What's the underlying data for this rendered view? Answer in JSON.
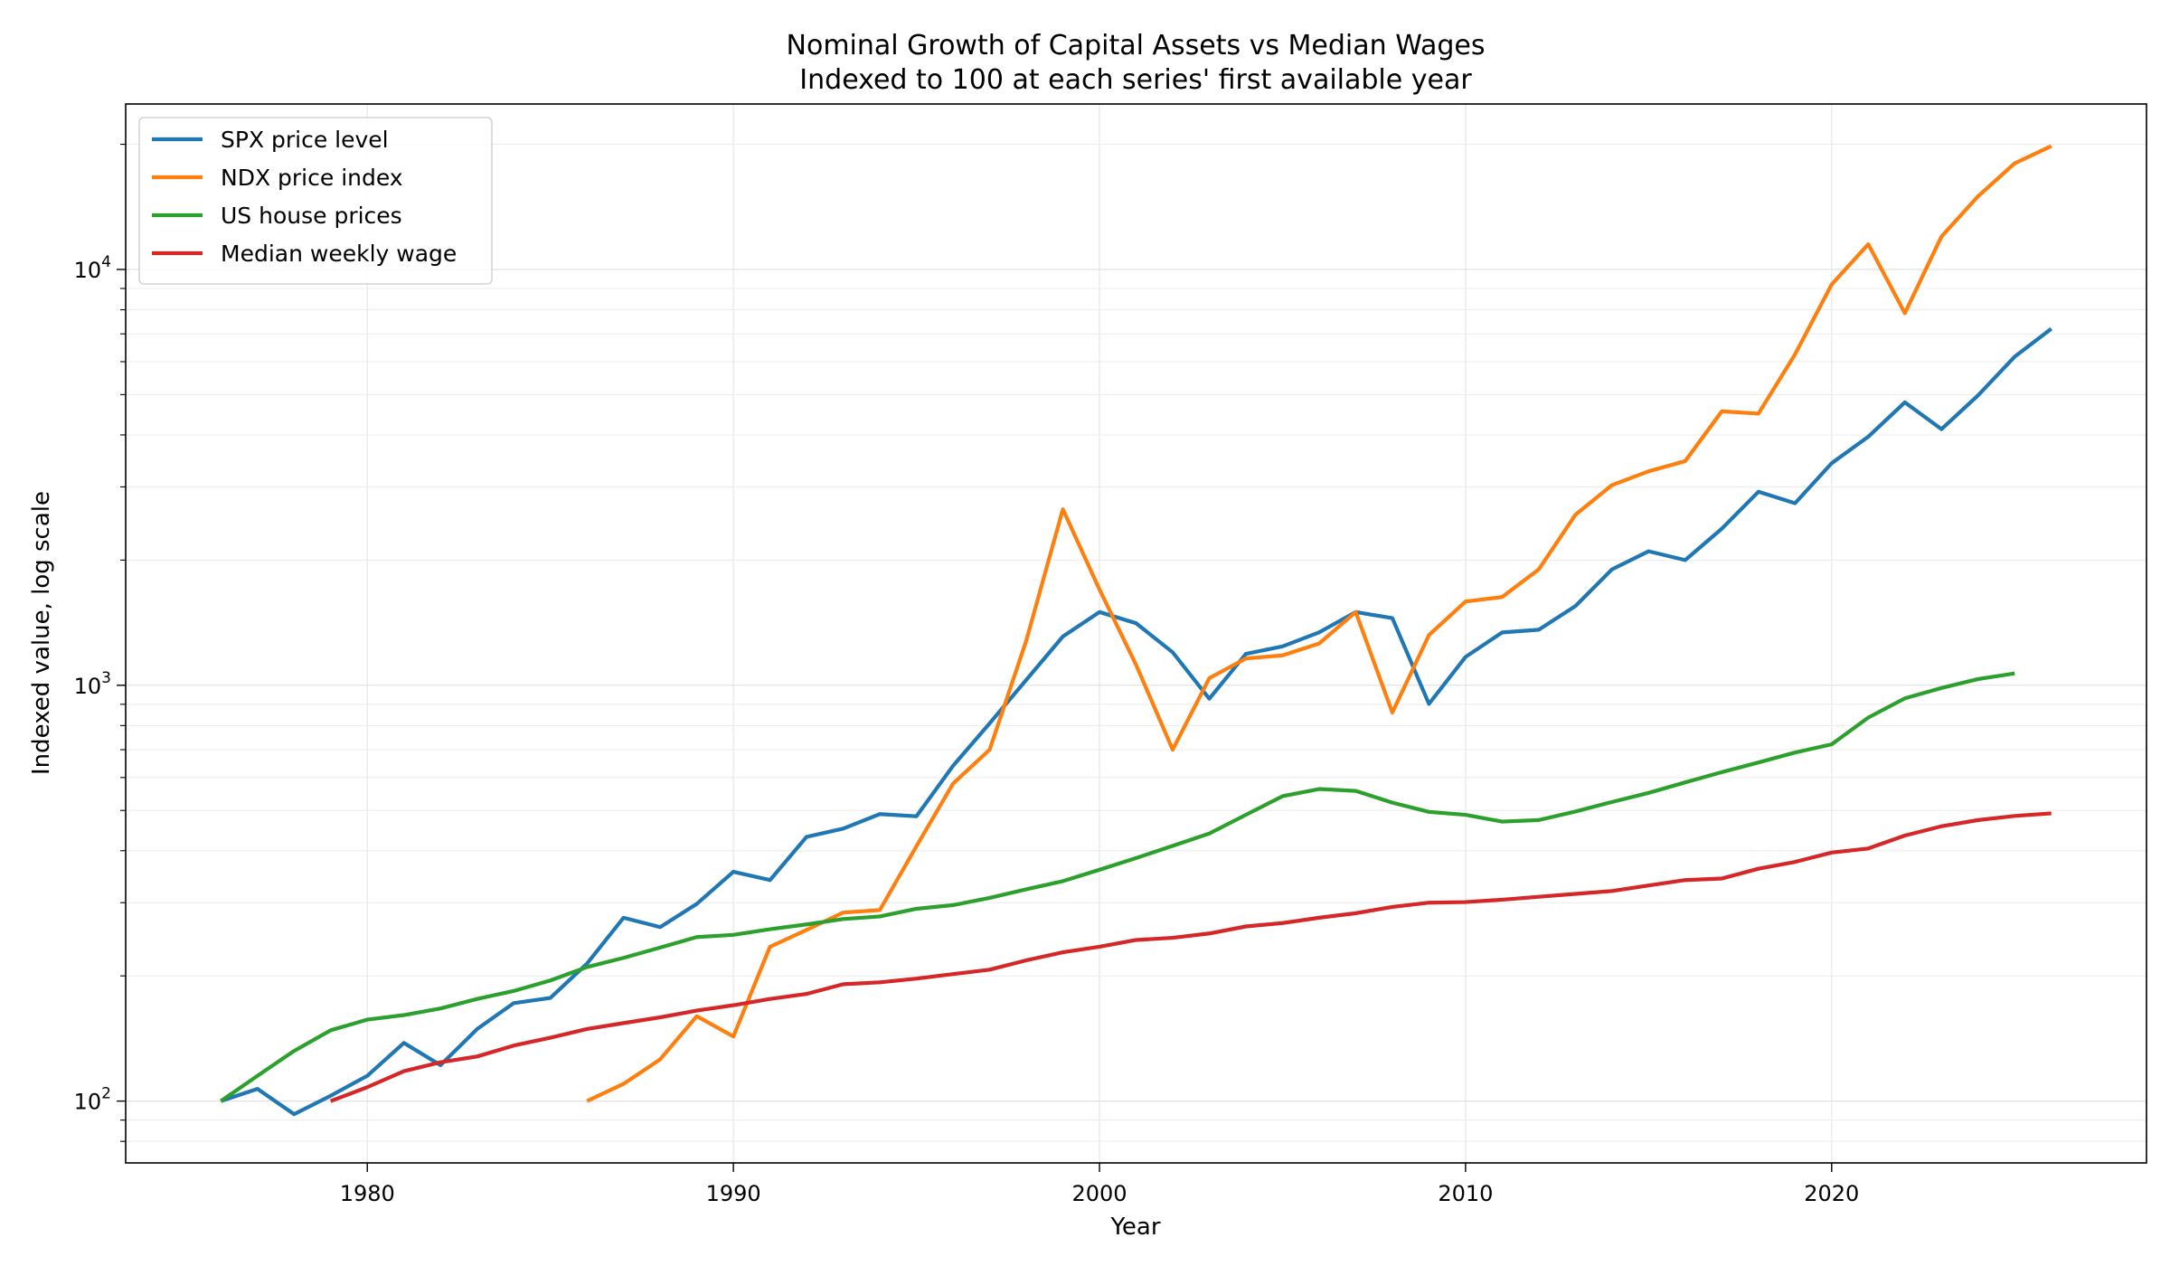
{
  "chart_data": {
    "type": "line",
    "title": "Nominal Growth of Capital Assets vs Median Wages",
    "subtitle": "Indexed to 100 at each series' first available year",
    "xlabel": "Year",
    "ylabel": "Indexed value, log scale",
    "yscale": "log",
    "xlim": [
      1973.4,
      2028.6
    ],
    "ylim": [
      71,
      25000
    ],
    "x_ticks": [
      1980,
      1990,
      2000,
      2010,
      2020
    ],
    "x_tick_labels": [
      "1980",
      "1990",
      "2000",
      "2010",
      "2020"
    ],
    "y_ticks": [
      100,
      1000,
      10000
    ],
    "y_tick_labels": [
      {
        "base": "10",
        "exp": "2"
      },
      {
        "base": "10",
        "exp": "3"
      },
      {
        "base": "10",
        "exp": "4"
      }
    ],
    "grid": true,
    "legend_position": "upper-left",
    "series": [
      {
        "name": "SPX price level",
        "color": "#1f77b4",
        "x": [
          1976,
          1977,
          1978,
          1979,
          1980,
          1981,
          1982,
          1983,
          1984,
          1985,
          1986,
          1987,
          1988,
          1989,
          1990,
          1991,
          1992,
          1993,
          1994,
          1995,
          1996,
          1997,
          1998,
          1999,
          2000,
          2001,
          2002,
          2003,
          2004,
          2005,
          2006,
          2007,
          2008,
          2009,
          2010,
          2011,
          2012,
          2013,
          2014,
          2015,
          2016,
          2017,
          2018,
          2019,
          2020,
          2021,
          2022,
          2023,
          2024,
          2025,
          2026
        ],
        "y": [
          100,
          107,
          93,
          103,
          115,
          138,
          122,
          149,
          172,
          177,
          214,
          276,
          262,
          298,
          356,
          340,
          432,
          452,
          490,
          484,
          640,
          810,
          1030,
          1310,
          1500,
          1410,
          1200,
          928,
          1190,
          1240,
          1340,
          1500,
          1450,
          902,
          1170,
          1340,
          1360,
          1550,
          1900,
          2100,
          2000,
          2380,
          2920,
          2740,
          3420,
          3960,
          4790,
          4130,
          4980,
          6170,
          7200
        ]
      },
      {
        "name": "NDX price index",
        "color": "#ff7f0e",
        "x": [
          1986,
          1987,
          1988,
          1989,
          1990,
          1991,
          1992,
          1993,
          1994,
          1995,
          1996,
          1997,
          1998,
          1999,
          2000,
          2001,
          2002,
          2003,
          2004,
          2005,
          2006,
          2007,
          2008,
          2009,
          2010,
          2011,
          2012,
          2013,
          2014,
          2015,
          2016,
          2017,
          2018,
          2019,
          2020,
          2021,
          2022,
          2023,
          2024,
          2025,
          2026
        ],
        "y": [
          100,
          110,
          126,
          160,
          143,
          235,
          258,
          284,
          288,
          410,
          580,
          700,
          1280,
          2650,
          1700,
          1120,
          700,
          1040,
          1160,
          1180,
          1260,
          1500,
          860,
          1320,
          1590,
          1630,
          1900,
          2570,
          3030,
          3270,
          3460,
          4560,
          4500,
          6250,
          9200,
          11500,
          7850,
          12000,
          15000,
          18000,
          19800
        ]
      },
      {
        "name": "US house prices",
        "color": "#2ca02c",
        "x": [
          1976,
          1977,
          1978,
          1979,
          1980,
          1981,
          1982,
          1983,
          1984,
          1985,
          1986,
          1987,
          1988,
          1989,
          1990,
          1991,
          1992,
          1993,
          1994,
          1995,
          1996,
          1997,
          1998,
          1999,
          2000,
          2001,
          2002,
          2003,
          2004,
          2005,
          2006,
          2007,
          2008,
          2009,
          2010,
          2011,
          2012,
          2013,
          2014,
          2015,
          2016,
          2017,
          2018,
          2019,
          2020,
          2021,
          2022,
          2023,
          2024,
          2025
        ],
        "y": [
          100,
          115,
          132,
          148,
          157,
          161,
          167,
          176,
          184,
          195,
          210,
          221,
          234,
          248,
          251,
          259,
          266,
          274,
          278,
          290,
          296,
          308,
          323,
          338,
          360,
          384,
          411,
          440,
          488,
          541,
          563,
          557,
          522,
          496,
          488,
          470,
          474,
          497,
          524,
          551,
          584,
          618,
          652,
          689,
          721,
          836,
          930,
          985,
          1035,
          1068
        ]
      },
      {
        "name": "Median weekly wage",
        "color": "#d62728",
        "x": [
          1979,
          1980,
          1981,
          1982,
          1983,
          1984,
          1985,
          1986,
          1987,
          1988,
          1989,
          1990,
          1991,
          1992,
          1993,
          1994,
          1995,
          1996,
          1997,
          1998,
          1999,
          2000,
          2001,
          2002,
          2003,
          2004,
          2005,
          2006,
          2007,
          2008,
          2009,
          2010,
          2011,
          2012,
          2013,
          2014,
          2015,
          2016,
          2017,
          2018,
          2019,
          2020,
          2021,
          2022,
          2023,
          2024,
          2025,
          2026
        ],
        "y": [
          100,
          108,
          118,
          124,
          128,
          136,
          142,
          149,
          154,
          159,
          165,
          170,
          176,
          181,
          191,
          193,
          197,
          202,
          207,
          218,
          228,
          235,
          244,
          247,
          253,
          263,
          268,
          276,
          283,
          293,
          300,
          301,
          305,
          310,
          315,
          320,
          330,
          340,
          343,
          362,
          376,
          396,
          405,
          435,
          458,
          474,
          485,
          492
        ]
      }
    ]
  }
}
